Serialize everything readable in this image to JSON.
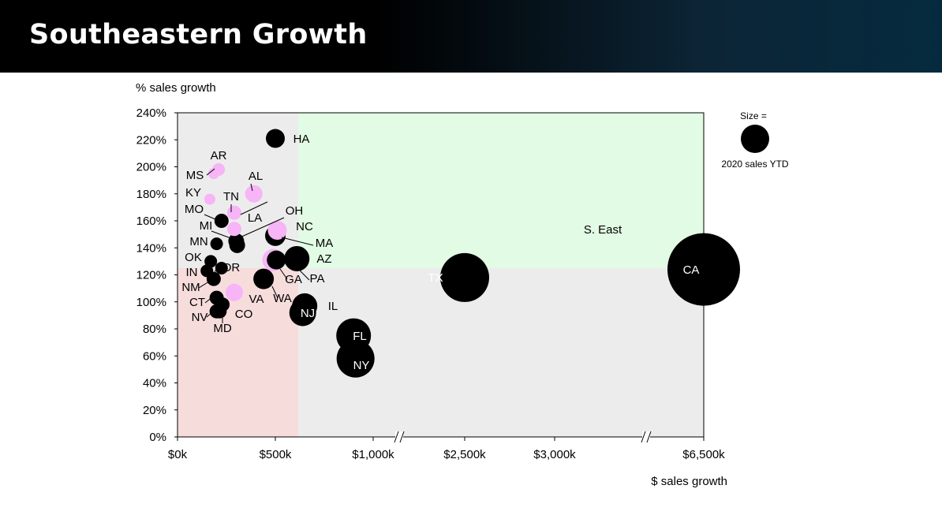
{
  "page": {
    "title": "Southeastern Growth"
  },
  "chart_data": {
    "type": "scatter",
    "title": "",
    "ylabel": "% sales growth",
    "xlabel": "$ sales growth",
    "ylim": [
      0,
      240
    ],
    "x_ticks": [
      "$0k",
      "$500k",
      "$1,000k",
      "$2,500k",
      "$3,000k",
      "$6,500k"
    ],
    "y_ticks": [
      "0%",
      "20%",
      "40%",
      "60%",
      "80%",
      "100%",
      "120%",
      "140%",
      "160%",
      "180%",
      "200%",
      "220%",
      "240%"
    ],
    "x_axis_breaks": "two broken segments between $1,000k and $2,500k, and between $3,000k and $6,500k",
    "quadrants": {
      "x_threshold_k": 600,
      "y_threshold_pct": 125,
      "upper_right": "#e2fbe4",
      "lower_left": "#f7dcdc",
      "other": "#ececec"
    },
    "legend": {
      "title": "Size =",
      "caption": "2020 sales YTD",
      "position": "right"
    },
    "colors": {
      "state": "#000000",
      "southeast": "#f7b4f7"
    },
    "points": [
      {
        "label": "HA",
        "x_k": 500,
        "y": 221,
        "group": "state",
        "size": 12
      },
      {
        "label": "AR",
        "x_k": 210,
        "y": 198,
        "group": "southeast",
        "size": 8
      },
      {
        "label": "MS",
        "x_k": 185,
        "y": 195,
        "group": "southeast",
        "size": 7
      },
      {
        "label": "AL",
        "x_k": 390,
        "y": 180,
        "group": "southeast",
        "size": 11
      },
      {
        "label": "KY",
        "x_k": 165,
        "y": 176,
        "group": "southeast",
        "size": 7
      },
      {
        "label": "TN",
        "x_k": 290,
        "y": 166,
        "group": "southeast",
        "size": 9
      },
      {
        "label": "MO",
        "x_k": 225,
        "y": 160,
        "group": "state",
        "size": 9
      },
      {
        "label": "LA",
        "x_k": 290,
        "y": 154,
        "group": "southeast",
        "size": 9
      },
      {
        "label": "MI",
        "x_k": 300,
        "y": 145,
        "group": "state",
        "size": 10
      },
      {
        "label": "MN",
        "x_k": 200,
        "y": 143,
        "group": "state",
        "size": 8
      },
      {
        "label": "OH",
        "x_k": 305,
        "y": 142,
        "group": "state",
        "size": 10
      },
      {
        "label": "NC",
        "x_k": 510,
        "y": 153,
        "group": "southeast",
        "size": 12
      },
      {
        "label": "MA",
        "x_k": 500,
        "y": 149,
        "group": "state",
        "size": 13
      },
      {
        "label": "OK",
        "x_k": 170,
        "y": 130,
        "group": "state",
        "size": 8
      },
      {
        "label": "AZ",
        "x_k": 610,
        "y": 132,
        "group": "state",
        "size": 16
      },
      {
        "label": "GA",
        "x_k": 490,
        "y": 131,
        "group": "southeast",
        "size": 14
      },
      {
        "label": "PA",
        "x_k": 505,
        "y": 131,
        "group": "state",
        "size": 12
      },
      {
        "label": "OR",
        "x_k": 225,
        "y": 125,
        "group": "state",
        "size": 8
      },
      {
        "label": "IN",
        "x_k": 150,
        "y": 123,
        "group": "state",
        "size": 8
      },
      {
        "label": "NM",
        "x_k": 185,
        "y": 117,
        "group": "state",
        "size": 9
      },
      {
        "label": "WA",
        "x_k": 440,
        "y": 117,
        "group": "state",
        "size": 13
      },
      {
        "label": "VA",
        "x_k": 290,
        "y": 107,
        "group": "southeast",
        "size": 11
      },
      {
        "label": "CT",
        "x_k": 200,
        "y": 103,
        "group": "state",
        "size": 9
      },
      {
        "label": "CO",
        "x_k": 230,
        "y": 98,
        "group": "state",
        "size": 9
      },
      {
        "label": "NV",
        "x_k": 215,
        "y": 93,
        "group": "state",
        "size": 9
      },
      {
        "label": "IL",
        "x_k": 650,
        "y": 97,
        "group": "state",
        "size": 16
      },
      {
        "label": "NJ",
        "x_k": 640,
        "y": 92,
        "group": "state",
        "size": 17
      },
      {
        "label": "MD",
        "x_k": 200,
        "y": 93,
        "group": "state",
        "size": 9
      },
      {
        "label": "FL",
        "x_k": 900,
        "y": 75,
        "group": "state",
        "size": 22
      },
      {
        "label": "NY",
        "x_k": 910,
        "y": 58,
        "group": "state",
        "size": 24
      },
      {
        "label": "TX",
        "x_k": 2500,
        "y": 118,
        "group": "state",
        "size": 31
      },
      {
        "label": "S. East",
        "x_k": 3100,
        "y": 154,
        "group": "southeast",
        "size": 35
      },
      {
        "label": "CA",
        "x_k": 6500,
        "y": 124,
        "group": "state",
        "size": 46
      }
    ]
  }
}
